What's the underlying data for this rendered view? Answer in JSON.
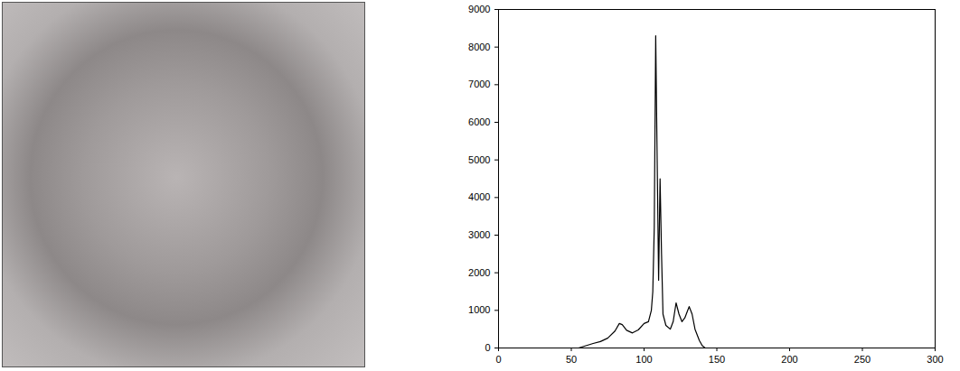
{
  "chart_data": {
    "type": "line",
    "x": [
      50,
      55,
      60,
      65,
      70,
      75,
      80,
      83,
      85,
      88,
      92,
      96,
      100,
      103,
      105,
      106,
      107,
      108,
      109,
      110,
      111,
      112,
      113,
      115,
      118,
      120,
      122,
      124,
      126,
      128,
      130,
      131,
      133,
      135,
      138,
      140,
      142,
      145
    ],
    "values": [
      0,
      0,
      60,
      120,
      170,
      260,
      450,
      650,
      620,
      470,
      400,
      480,
      650,
      700,
      1000,
      1500,
      3200,
      8300,
      5000,
      1800,
      4500,
      2500,
      900,
      600,
      500,
      700,
      1200,
      900,
      700,
      800,
      1000,
      1100,
      900,
      500,
      200,
      60,
      0,
      0
    ],
    "color": "#000000",
    "xlim": [
      0,
      300
    ],
    "xticks": [
      0,
      50,
      100,
      150,
      200,
      250,
      300
    ],
    "ylim": [
      0,
      9000
    ],
    "yticks": [
      0,
      1000,
      2000,
      3000,
      4000,
      5000,
      6000,
      7000,
      8000,
      9000
    ],
    "grid": false
  }
}
